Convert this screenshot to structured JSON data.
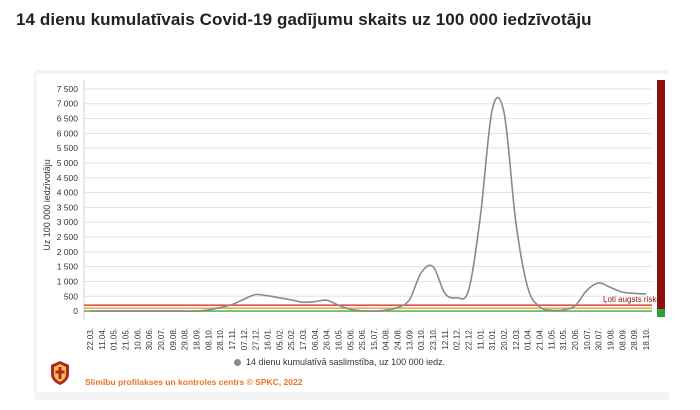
{
  "page": {
    "title": "14 dienu kumulatīvais Covid-19 gadījumu skaits uz 100 000 iedzīvotāju",
    "source": "Slimību profilakses un kontroles centrs © SPKC, 2022",
    "logo_icon": "spkc-crest-icon"
  },
  "chart_data": {
    "type": "line",
    "title": "14 dienu kumulatīvais Covid-19 gadījumu skaits uz 100 000 iedzīvotāju",
    "xlabel": "",
    "ylabel": "Uz 100 000 iedzīvotāju",
    "ylim": [
      -300,
      7800
    ],
    "yticks": [
      0,
      500,
      1000,
      1500,
      2000,
      2500,
      3000,
      3500,
      4000,
      4500,
      5000,
      5500,
      6000,
      6500,
      7000,
      7500
    ],
    "ytick_labels": [
      "0",
      "500",
      "1 000",
      "1 500",
      "2 000",
      "2 500",
      "3 000",
      "3 500",
      "4 000",
      "4 500",
      "5 000",
      "5 500",
      "6 000",
      "6 500",
      "7 000",
      "7 500"
    ],
    "categories": [
      "22.03.",
      "11.04.",
      "01.05.",
      "21.05.",
      "10.06.",
      "30.06.",
      "20.07.",
      "09.08.",
      "29.08.",
      "18.09.",
      "08.10.",
      "28.10.",
      "17.11.",
      "07.12.",
      "27.12.",
      "16.01.",
      "05.02.",
      "25.02.",
      "17.03.",
      "06.04.",
      "26.04.",
      "16.05.",
      "05.06.",
      "25.06.",
      "15.07.",
      "04.08.",
      "24.08.",
      "13.09.",
      "03.10.",
      "23.10.",
      "12.11.",
      "02.12.",
      "22.12.",
      "11.01.",
      "31.01.",
      "20.02.",
      "12.03.",
      "01.04.",
      "21.04.",
      "11.05.",
      "31.05.",
      "20.06.",
      "10.07.",
      "30.07.",
      "19.08.",
      "08.09.",
      "28.09.",
      "18.10."
    ],
    "series": [
      {
        "name": "14 dienu kumulatīvā saslimstība, uz 100 000 iedz.",
        "color": "#8a8a8a",
        "values": [
          0,
          0,
          0,
          0,
          0,
          0,
          0,
          0,
          0,
          0,
          40,
          120,
          220,
          400,
          560,
          520,
          450,
          380,
          300,
          320,
          370,
          200,
          60,
          10,
          0,
          30,
          120,
          380,
          1300,
          1500,
          600,
          450,
          700,
          3200,
          6800,
          6700,
          3000,
          800,
          150,
          30,
          40,
          180,
          700,
          950,
          800,
          640,
          600,
          580
        ]
      }
    ],
    "thresholds": [
      {
        "value": 200,
        "color": "#d9534f",
        "label": "Ļoti augsts risks"
      },
      {
        "value": 100,
        "color": "#f0ad4e",
        "label": ""
      },
      {
        "value": 0,
        "color": "#5cb85c",
        "label": ""
      }
    ],
    "risk_bar_colors": [
      "#8b1010",
      "#2e9e3e"
    ],
    "grid": true,
    "legend_position": "bottom"
  }
}
